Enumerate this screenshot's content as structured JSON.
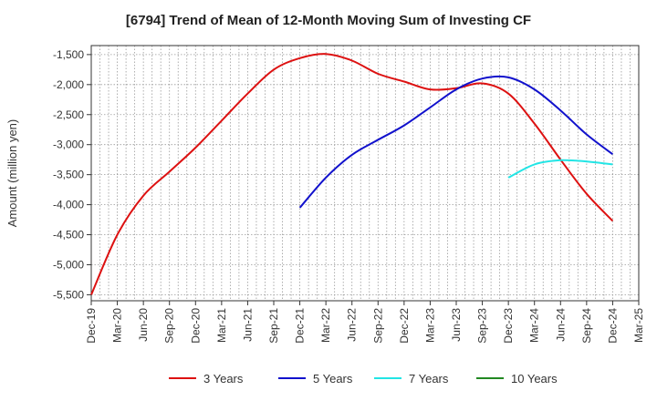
{
  "chart_data": {
    "type": "line",
    "title": "[6794]  Trend of Mean of 12-Month Moving Sum of Investing CF",
    "xlabel": "",
    "ylabel": "Amount (million yen)",
    "ylim": [
      -5600,
      -1350
    ],
    "yticks": [
      -1500,
      -2000,
      -2500,
      -3000,
      -3500,
      -4000,
      -4500,
      -5000,
      -5500
    ],
    "ytick_labels": [
      "-1,500",
      "-2,000",
      "-2,500",
      "-3,000",
      "-3,500",
      "-4,000",
      "-4,500",
      "-5,000",
      "-5,500"
    ],
    "x_start": "2019-12",
    "x_end": "2025-03",
    "xtick_labels": [
      "Dec-19",
      "Mar-20",
      "Jun-20",
      "Sep-20",
      "Dec-20",
      "Mar-21",
      "Jun-21",
      "Sep-21",
      "Dec-21",
      "Mar-22",
      "Jun-22",
      "Sep-22",
      "Dec-22",
      "Mar-23",
      "Jun-23",
      "Sep-23",
      "Dec-23",
      "Mar-24",
      "Jun-24",
      "Sep-24",
      "Dec-24",
      "Mar-25"
    ],
    "grid": true,
    "legend_position": "bottom",
    "series": [
      {
        "name": "3 Years",
        "color": "#dd1111",
        "points": [
          [
            "2019-12",
            -5500
          ],
          [
            "2020-03",
            -4500
          ],
          [
            "2020-06",
            -3850
          ],
          [
            "2020-09",
            -3450
          ],
          [
            "2020-12",
            -3050
          ],
          [
            "2021-03",
            -2600
          ],
          [
            "2021-06",
            -2150
          ],
          [
            "2021-09",
            -1750
          ],
          [
            "2021-12",
            -1560
          ],
          [
            "2022-03",
            -1490
          ],
          [
            "2022-06",
            -1600
          ],
          [
            "2022-09",
            -1820
          ],
          [
            "2022-12",
            -1950
          ],
          [
            "2023-03",
            -2080
          ],
          [
            "2023-06",
            -2060
          ],
          [
            "2023-09",
            -1980
          ],
          [
            "2023-12",
            -2150
          ],
          [
            "2024-03",
            -2650
          ],
          [
            "2024-06",
            -3250
          ],
          [
            "2024-09",
            -3820
          ],
          [
            "2024-12",
            -4270
          ]
        ]
      },
      {
        "name": "5 Years",
        "color": "#1111cc",
        "points": [
          [
            "2021-12",
            -4050
          ],
          [
            "2022-03",
            -3550
          ],
          [
            "2022-06",
            -3170
          ],
          [
            "2022-09",
            -2920
          ],
          [
            "2022-12",
            -2680
          ],
          [
            "2023-03",
            -2380
          ],
          [
            "2023-06",
            -2080
          ],
          [
            "2023-09",
            -1900
          ],
          [
            "2023-12",
            -1880
          ],
          [
            "2024-03",
            -2080
          ],
          [
            "2024-06",
            -2430
          ],
          [
            "2024-09",
            -2830
          ],
          [
            "2024-12",
            -3160
          ]
        ]
      },
      {
        "name": "7 Years",
        "color": "#22e5e5",
        "points": [
          [
            "2023-12",
            -3550
          ],
          [
            "2024-03",
            -3330
          ],
          [
            "2024-06",
            -3260
          ],
          [
            "2024-09",
            -3280
          ],
          [
            "2024-12",
            -3330
          ]
        ]
      },
      {
        "name": "10 Years",
        "color": "#228822",
        "points": []
      }
    ]
  }
}
